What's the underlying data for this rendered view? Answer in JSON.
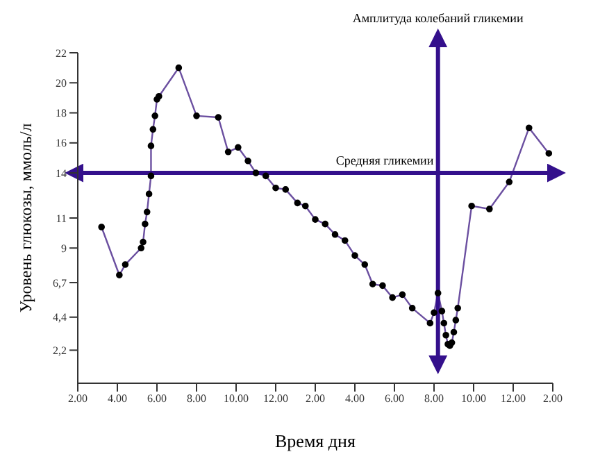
{
  "chart_data": {
    "type": "line",
    "xlabel": "Время дня",
    "ylabel": "Уровень глюкозы, ммоль/л",
    "x": [
      "2000-01-01T03:12",
      "2000-01-01T04:06",
      "2000-01-01T04:24",
      "2000-01-01T05:12",
      "2000-01-01T05:18",
      "2000-01-01T05:24",
      "2000-01-01T05:30",
      "2000-01-01T05:36",
      "2000-01-01T05:42",
      "2000-01-01T05:42",
      "2000-01-01T05:48",
      "2000-01-01T05:54",
      "2000-01-01T06:00",
      "2000-01-01T06:06",
      "2000-01-01T07:06",
      "2000-01-01T08:00",
      "2000-01-01T09:06",
      "2000-01-01T09:36",
      "2000-01-01T10:06",
      "2000-01-01T10:36",
      "2000-01-01T11:00",
      "2000-01-01T11:30",
      "2000-01-01T12:00",
      "2000-01-01T12:30",
      "2000-01-01T13:06",
      "2000-01-01T13:30",
      "2000-01-01T14:00",
      "2000-01-01T14:30",
      "2000-01-01T15:00",
      "2000-01-01T15:30",
      "2000-01-01T16:00",
      "2000-01-01T16:30",
      "2000-01-01T16:54",
      "2000-01-01T17:24",
      "2000-01-01T17:54",
      "2000-01-01T18:24",
      "2000-01-01T18:54",
      "2000-01-01T19:48",
      "2000-01-01T20:00",
      "2000-01-01T20:12",
      "2000-01-01T20:24",
      "2000-01-01T20:30",
      "2000-01-01T20:36",
      "2000-01-01T20:42",
      "2000-01-01T20:48",
      "2000-01-01T20:54",
      "2000-01-01T21:00",
      "2000-01-01T21:06",
      "2000-01-01T21:12",
      "2000-01-01T21:54",
      "2000-01-01T22:48",
      "2000-01-01T23:48",
      "2000-01-02T00:48",
      "2000-01-02T01:48"
    ],
    "series": [
      {
        "color": "#6b4fa0",
        "values": [
          10.4,
          7.2,
          7.9,
          9.0,
          9.4,
          10.6,
          11.4,
          12.6,
          13.8,
          15.8,
          16.9,
          17.8,
          18.9,
          19.1,
          21.0,
          17.8,
          17.7,
          15.4,
          15.7,
          14.8,
          14.0,
          13.8,
          13.0,
          12.9,
          12.0,
          11.8,
          10.9,
          10.6,
          9.9,
          9.5,
          8.5,
          7.9,
          6.6,
          6.5,
          5.7,
          5.9,
          5.0,
          4.0,
          4.7,
          6.0,
          4.8,
          4.0,
          3.2,
          2.6,
          2.5,
          2.7,
          3.4,
          4.2,
          5.0,
          11.8,
          11.6,
          13.4,
          17.0,
          15.3
        ]
      }
    ],
    "xlim": [
      "2000-01-01T02:00",
      "2000-01-02T02:00"
    ],
    "xticks": [
      {
        "value": "2000-01-01T02:00",
        "label": "2.00"
      },
      {
        "value": "2000-01-01T04:00",
        "label": "4.00"
      },
      {
        "value": "2000-01-01T06:00",
        "label": "6.00"
      },
      {
        "value": "2000-01-01T08:00",
        "label": "8.00"
      },
      {
        "value": "2000-01-01T10:00",
        "label": "10.00"
      },
      {
        "value": "2000-01-01T12:00",
        "label": "12.00"
      },
      {
        "value": "2000-01-01T14:00",
        "label": "2.00"
      },
      {
        "value": "2000-01-01T16:00",
        "label": "4.00"
      },
      {
        "value": "2000-01-01T18:00",
        "label": "6.00"
      },
      {
        "value": "2000-01-01T20:00",
        "label": "8.00"
      },
      {
        "value": "2000-01-01T22:00",
        "label": "10.00"
      },
      {
        "value": "2000-01-02T00:00",
        "label": "12.00"
      },
      {
        "value": "2000-01-02T02:00",
        "label": "2.00"
      }
    ],
    "ylim": [
      0,
      22
    ],
    "yticks": [
      {
        "value": 2.2,
        "label": "2,2"
      },
      {
        "value": 4.4,
        "label": "4,4"
      },
      {
        "value": 6.7,
        "label": "6,7"
      },
      9,
      11,
      14,
      16,
      18,
      20,
      22
    ],
    "ref_lines": [
      {
        "axis": "y",
        "value": 14,
        "label": "Средняя гликемии",
        "color": "#34108c"
      },
      {
        "axis": "x",
        "value": "2000-01-01T20:12",
        "label": "Амплитуда колебаний гликемии",
        "color": "#34108c"
      }
    ],
    "grid": false,
    "legend": false,
    "marker": "circle",
    "line_style": "solid"
  }
}
